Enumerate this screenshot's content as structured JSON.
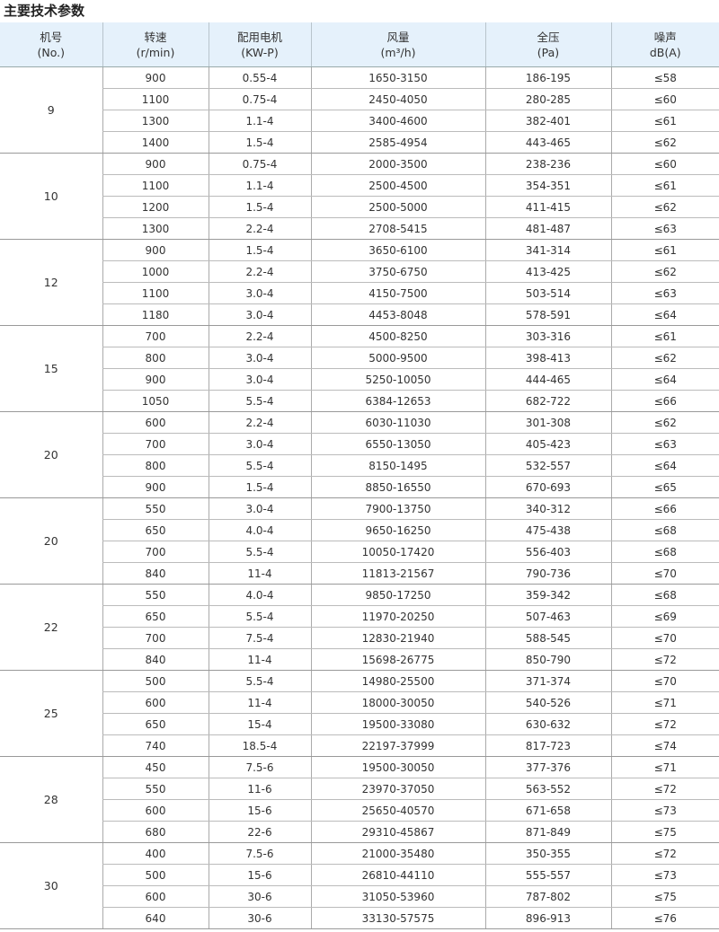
{
  "title": "主要技术参数",
  "headers": [
    [
      "机号",
      "(No.)"
    ],
    [
      "转速",
      "(r/min)"
    ],
    [
      "配用电机",
      "(KW-P)"
    ],
    [
      "风量",
      "(m³/h)"
    ],
    [
      "全压",
      "(Pa)"
    ],
    [
      "噪声",
      "dB(A)"
    ]
  ],
  "groups": [
    {
      "no": "9",
      "rows": [
        [
          "900",
          "0.55-4",
          "1650-3150",
          "186-195",
          "≤58"
        ],
        [
          "1100",
          "0.75-4",
          "2450-4050",
          "280-285",
          "≤60"
        ],
        [
          "1300",
          "1.1-4",
          "3400-4600",
          "382-401",
          "≤61"
        ],
        [
          "1400",
          "1.5-4",
          "2585-4954",
          "443-465",
          "≤62"
        ]
      ]
    },
    {
      "no": "10",
      "rows": [
        [
          "900",
          "0.75-4",
          "2000-3500",
          "238-236",
          "≤60"
        ],
        [
          "1100",
          "1.1-4",
          "2500-4500",
          "354-351",
          "≤61"
        ],
        [
          "1200",
          "1.5-4",
          "2500-5000",
          "411-415",
          "≤62"
        ],
        [
          "1300",
          "2.2-4",
          "2708-5415",
          "481-487",
          "≤63"
        ]
      ]
    },
    {
      "no": "12",
      "rows": [
        [
          "900",
          "1.5-4",
          "3650-6100",
          "341-314",
          "≤61"
        ],
        [
          "1000",
          "2.2-4",
          "3750-6750",
          "413-425",
          "≤62"
        ],
        [
          "1100",
          "3.0-4",
          "4150-7500",
          "503-514",
          "≤63"
        ],
        [
          "1180",
          "3.0-4",
          "4453-8048",
          "578-591",
          "≤64"
        ]
      ]
    },
    {
      "no": "15",
      "rows": [
        [
          "700",
          "2.2-4",
          "4500-8250",
          "303-316",
          "≤61"
        ],
        [
          "800",
          "3.0-4",
          "5000-9500",
          "398-413",
          "≤62"
        ],
        [
          "900",
          "3.0-4",
          "5250-10050",
          "444-465",
          "≤64"
        ],
        [
          "1050",
          "5.5-4",
          "6384-12653",
          "682-722",
          "≤66"
        ]
      ]
    },
    {
      "no": "20",
      "rows": [
        [
          "600",
          "2.2-4",
          "6030-11030",
          "301-308",
          "≤62"
        ],
        [
          "700",
          "3.0-4",
          "6550-13050",
          "405-423",
          "≤63"
        ],
        [
          "800",
          "5.5-4",
          "8150-1495",
          "532-557",
          "≤64"
        ],
        [
          "900",
          "1.5-4",
          "8850-16550",
          "670-693",
          "≤65"
        ]
      ]
    },
    {
      "no": "20",
      "rows": [
        [
          "550",
          "3.0-4",
          "7900-13750",
          "340-312",
          "≤66"
        ],
        [
          "650",
          "4.0-4",
          "9650-16250",
          "475-438",
          "≤68"
        ],
        [
          "700",
          "5.5-4",
          "10050-17420",
          "556-403",
          "≤68"
        ],
        [
          "840",
          "11-4",
          "11813-21567",
          "790-736",
          "≤70"
        ]
      ]
    },
    {
      "no": "22",
      "rows": [
        [
          "550",
          "4.0-4",
          "9850-17250",
          "359-342",
          "≤68"
        ],
        [
          "650",
          "5.5-4",
          "11970-20250",
          "507-463",
          "≤69"
        ],
        [
          "700",
          "7.5-4",
          "12830-21940",
          "588-545",
          "≤70"
        ],
        [
          "840",
          "11-4",
          "15698-26775",
          "850-790",
          "≤72"
        ]
      ]
    },
    {
      "no": "25",
      "rows": [
        [
          "500",
          "5.5-4",
          "14980-25500",
          "371-374",
          "≤70"
        ],
        [
          "600",
          "11-4",
          "18000-30050",
          "540-526",
          "≤71"
        ],
        [
          "650",
          "15-4",
          "19500-33080",
          "630-632",
          "≤72"
        ],
        [
          "740",
          "18.5-4",
          "22197-37999",
          "817-723",
          "≤74"
        ]
      ]
    },
    {
      "no": "28",
      "rows": [
        [
          "450",
          "7.5-6",
          "19500-30050",
          "377-376",
          "≤71"
        ],
        [
          "550",
          "11-6",
          "23970-37050",
          "563-552",
          "≤72"
        ],
        [
          "600",
          "15-6",
          "25650-40570",
          "671-658",
          "≤73"
        ],
        [
          "680",
          "22-6",
          "29310-45867",
          "871-849",
          "≤75"
        ]
      ]
    },
    {
      "no": "30",
      "rows": [
        [
          "400",
          "7.5-6",
          "21000-35480",
          "350-355",
          "≤72"
        ],
        [
          "500",
          "15-6",
          "26810-44110",
          "555-557",
          "≤73"
        ],
        [
          "600",
          "30-6",
          "31050-53960",
          "787-802",
          "≤75"
        ],
        [
          "640",
          "30-6",
          "33130-57575",
          "896-913",
          "≤76"
        ]
      ]
    }
  ]
}
